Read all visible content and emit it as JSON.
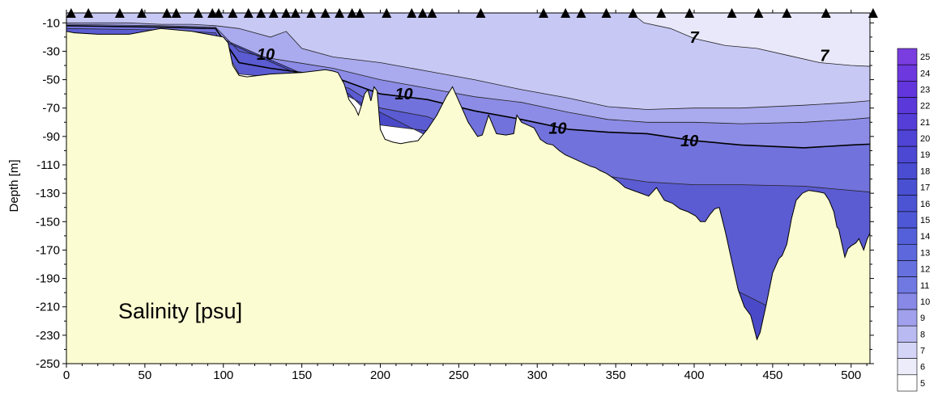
{
  "chart_data": {
    "type": "area",
    "title": "",
    "xlabel": "",
    "ylabel": "Depth [m]",
    "xlim": [
      0,
      512
    ],
    "ylim": [
      -250,
      -3
    ],
    "x_ticks": [
      0,
      50,
      100,
      150,
      200,
      250,
      300,
      350,
      400,
      450,
      500
    ],
    "y_ticks": [
      -10,
      -30,
      -50,
      -70,
      -90,
      -110,
      -130,
      -150,
      -170,
      -190,
      -210,
      -230,
      -250
    ],
    "annotation": "Salinity [psu]",
    "contour_labels": [
      {
        "text": "10",
        "x": 127,
        "y": -36
      },
      {
        "text": "10",
        "x": 215,
        "y": -64
      },
      {
        "text": "10",
        "x": 313,
        "y": -88
      },
      {
        "text": "10",
        "x": 397,
        "y": -97
      },
      {
        "text": "7",
        "x": 400,
        "y": -24
      },
      {
        "text": "7",
        "x": 483,
        "y": -37
      }
    ],
    "station_x": [
      3,
      14,
      34,
      48,
      64,
      70,
      84,
      93,
      97,
      106,
      116,
      124,
      132,
      140,
      146,
      156,
      165,
      174,
      182,
      187,
      204,
      220,
      227,
      233,
      264,
      304,
      318,
      328,
      344,
      361,
      379,
      397,
      424,
      441,
      459,
      484,
      514
    ],
    "bathymetry": [
      [
        0,
        -16
      ],
      [
        5,
        -17
      ],
      [
        20,
        -18
      ],
      [
        40,
        -18
      ],
      [
        60,
        -14
      ],
      [
        80,
        -16
      ],
      [
        100,
        -20
      ],
      [
        103,
        -24
      ],
      [
        106,
        -40
      ],
      [
        110,
        -47
      ],
      [
        115,
        -48
      ],
      [
        130,
        -46
      ],
      [
        150,
        -45
      ],
      [
        165,
        -43
      ],
      [
        170,
        -44
      ],
      [
        173,
        -45
      ],
      [
        177,
        -53
      ],
      [
        180,
        -64
      ],
      [
        184,
        -70
      ],
      [
        186,
        -75
      ],
      [
        188,
        -68
      ],
      [
        190,
        -60
      ],
      [
        192,
        -57
      ],
      [
        194,
        -65
      ],
      [
        196,
        -55
      ],
      [
        198,
        -58
      ],
      [
        200,
        -85
      ],
      [
        203,
        -92
      ],
      [
        208,
        -94
      ],
      [
        213,
        -95
      ],
      [
        218,
        -94
      ],
      [
        224,
        -93
      ],
      [
        230,
        -85
      ],
      [
        236,
        -75
      ],
      [
        242,
        -62
      ],
      [
        246,
        -55
      ],
      [
        250,
        -65
      ],
      [
        256,
        -80
      ],
      [
        262,
        -90
      ],
      [
        265,
        -89
      ],
      [
        269,
        -75
      ],
      [
        274,
        -88
      ],
      [
        280,
        -89
      ],
      [
        285,
        -88
      ],
      [
        287,
        -75
      ],
      [
        290,
        -80
      ],
      [
        294,
        -82
      ],
      [
        298,
        -84
      ],
      [
        302,
        -92
      ],
      [
        306,
        -95
      ],
      [
        310,
        -96
      ],
      [
        314,
        -100
      ],
      [
        318,
        -103
      ],
      [
        322,
        -105
      ],
      [
        326,
        -107
      ],
      [
        330,
        -109
      ],
      [
        334,
        -111
      ],
      [
        337,
        -112
      ],
      [
        340,
        -114
      ],
      [
        344,
        -116
      ],
      [
        348,
        -119
      ],
      [
        352,
        -122
      ],
      [
        356,
        -126
      ],
      [
        361,
        -128
      ],
      [
        366,
        -130
      ],
      [
        371,
        -132
      ],
      [
        376,
        -126
      ],
      [
        381,
        -135
      ],
      [
        386,
        -137
      ],
      [
        391,
        -141
      ],
      [
        396,
        -143
      ],
      [
        401,
        -146
      ],
      [
        404,
        -150
      ],
      [
        407,
        -150
      ],
      [
        410,
        -145
      ],
      [
        413,
        -141
      ],
      [
        416,
        -140
      ],
      [
        420,
        -158
      ],
      [
        424,
        -178
      ],
      [
        428,
        -198
      ],
      [
        432,
        -210
      ],
      [
        436,
        -216
      ],
      [
        440,
        -233
      ],
      [
        442,
        -228
      ],
      [
        446,
        -208
      ],
      [
        450,
        -186
      ],
      [
        454,
        -176
      ],
      [
        456,
        -174
      ],
      [
        459,
        -166
      ],
      [
        462,
        -148
      ],
      [
        465,
        -135
      ],
      [
        469,
        -130
      ],
      [
        473,
        -128
      ],
      [
        479,
        -129
      ],
      [
        483,
        -130
      ],
      [
        486,
        -135
      ],
      [
        489,
        -143
      ],
      [
        491,
        -154
      ],
      [
        492,
        -155
      ],
      [
        494,
        -165
      ],
      [
        496,
        -175
      ],
      [
        498,
        -169
      ],
      [
        500,
        -167
      ],
      [
        503,
        -165
      ],
      [
        505,
        -162
      ],
      [
        508,
        -170
      ],
      [
        510,
        -163
      ],
      [
        512,
        -158
      ],
      [
        514,
        -115
      ],
      [
        517,
        -108
      ],
      [
        520,
        -121
      ]
    ],
    "salinity_bands": [
      {
        "psu": 7,
        "color": "#e8e8fa",
        "upper": [
          [
            360,
            -3
          ],
          [
            420,
            -3
          ],
          [
            517,
            -3
          ],
          [
            520,
            -3
          ]
        ],
        "lower": [
          [
            360,
            -3
          ],
          [
            368,
            -10
          ],
          [
            385,
            -14
          ],
          [
            400,
            -21
          ],
          [
            420,
            -26
          ],
          [
            440,
            -28
          ],
          [
            460,
            -33
          ],
          [
            480,
            -38
          ],
          [
            500,
            -40
          ],
          [
            520,
            -41
          ]
        ]
      },
      {
        "psu": 8,
        "color": "#c8c8f5",
        "upper": [
          [
            0,
            -3
          ],
          [
            360,
            -3
          ],
          [
            368,
            -10
          ],
          [
            385,
            -14
          ],
          [
            400,
            -21
          ],
          [
            420,
            -26
          ],
          [
            440,
            -28
          ],
          [
            460,
            -33
          ],
          [
            480,
            -38
          ],
          [
            500,
            -40
          ],
          [
            520,
            -41
          ]
        ],
        "lower": [
          [
            0,
            -10
          ],
          [
            40,
            -10
          ],
          [
            60,
            -11
          ],
          [
            80,
            -11
          ],
          [
            95,
            -12
          ],
          [
            110,
            -14
          ],
          [
            130,
            -20
          ],
          [
            140,
            -16
          ],
          [
            150,
            -28
          ],
          [
            170,
            -34
          ],
          [
            200,
            -38
          ],
          [
            230,
            -44
          ],
          [
            260,
            -50
          ],
          [
            290,
            -57
          ],
          [
            320,
            -63
          ],
          [
            345,
            -69
          ],
          [
            370,
            -71
          ],
          [
            400,
            -70
          ],
          [
            430,
            -70
          ],
          [
            470,
            -68
          ],
          [
            500,
            -66
          ],
          [
            520,
            -64
          ]
        ]
      },
      {
        "psu": 9,
        "color": "#aaaaee",
        "upper": [
          [
            0,
            -10
          ],
          [
            40,
            -10
          ],
          [
            60,
            -11
          ],
          [
            80,
            -11
          ],
          [
            95,
            -12
          ],
          [
            110,
            -14
          ],
          [
            130,
            -20
          ],
          [
            140,
            -16
          ],
          [
            150,
            -28
          ],
          [
            170,
            -34
          ],
          [
            200,
            -38
          ],
          [
            230,
            -44
          ],
          [
            260,
            -50
          ],
          [
            290,
            -57
          ],
          [
            320,
            -63
          ],
          [
            345,
            -69
          ],
          [
            370,
            -71
          ],
          [
            400,
            -70
          ],
          [
            430,
            -70
          ],
          [
            470,
            -68
          ],
          [
            500,
            -66
          ],
          [
            520,
            -64
          ]
        ],
        "lower": [
          [
            0,
            -11
          ],
          [
            60,
            -12
          ],
          [
            95,
            -13
          ],
          [
            110,
            -30
          ],
          [
            130,
            -35
          ],
          [
            170,
            -42
          ],
          [
            200,
            -50
          ],
          [
            230,
            -56
          ],
          [
            260,
            -62
          ],
          [
            290,
            -66
          ],
          [
            320,
            -73
          ],
          [
            345,
            -78
          ],
          [
            370,
            -80
          ],
          [
            400,
            -80
          ],
          [
            430,
            -81
          ],
          [
            470,
            -80
          ],
          [
            500,
            -78
          ],
          [
            520,
            -76
          ]
        ]
      },
      {
        "psu": 10,
        "color": "#8c8ce6",
        "upper": [
          [
            0,
            -11
          ],
          [
            60,
            -12
          ],
          [
            95,
            -13
          ],
          [
            110,
            -30
          ],
          [
            130,
            -35
          ],
          [
            170,
            -42
          ],
          [
            200,
            -50
          ],
          [
            230,
            -56
          ],
          [
            260,
            -62
          ],
          [
            290,
            -66
          ],
          [
            320,
            -73
          ],
          [
            345,
            -78
          ],
          [
            370,
            -80
          ],
          [
            400,
            -80
          ],
          [
            430,
            -81
          ],
          [
            470,
            -80
          ],
          [
            500,
            -78
          ],
          [
            520,
            -76
          ]
        ],
        "lower": [
          [
            0,
            -12
          ],
          [
            60,
            -13
          ],
          [
            95,
            -14
          ],
          [
            110,
            -38
          ],
          [
            130,
            -42
          ],
          [
            170,
            -48
          ],
          [
            200,
            -60
          ],
          [
            230,
            -64
          ],
          [
            260,
            -72
          ],
          [
            290,
            -78
          ],
          [
            320,
            -85
          ],
          [
            345,
            -87
          ],
          [
            370,
            -88
          ],
          [
            400,
            -93
          ],
          [
            430,
            -96
          ],
          [
            470,
            -98
          ],
          [
            500,
            -96
          ],
          [
            520,
            -95
          ]
        ]
      },
      {
        "psu": 11,
        "color": "#7272dc",
        "upper": [
          [
            0,
            -12
          ],
          [
            60,
            -13
          ],
          [
            95,
            -14
          ],
          [
            110,
            -38
          ],
          [
            130,
            -42
          ],
          [
            170,
            -48
          ],
          [
            200,
            -60
          ],
          [
            230,
            -64
          ],
          [
            260,
            -72
          ],
          [
            290,
            -78
          ],
          [
            320,
            -85
          ],
          [
            345,
            -87
          ],
          [
            370,
            -88
          ],
          [
            400,
            -93
          ],
          [
            430,
            -96
          ],
          [
            470,
            -98
          ],
          [
            500,
            -96
          ],
          [
            520,
            -95
          ]
        ],
        "lower": [
          [
            0,
            -14
          ],
          [
            60,
            -15
          ],
          [
            95,
            -17
          ],
          [
            110,
            -46
          ],
          [
            150,
            -50
          ],
          [
            180,
            -56
          ],
          [
            200,
            -70
          ],
          [
            230,
            -76
          ],
          [
            260,
            -90
          ],
          [
            290,
            -100
          ],
          [
            320,
            -110
          ],
          [
            345,
            -118
          ],
          [
            370,
            -122
          ],
          [
            400,
            -124
          ],
          [
            430,
            -124
          ],
          [
            470,
            -125
          ],
          [
            500,
            -128
          ],
          [
            520,
            -130
          ]
        ]
      },
      {
        "psu": 12,
        "color": "#5b5bd2",
        "upper": [
          [
            0,
            -14
          ],
          [
            60,
            -15
          ],
          [
            95,
            -17
          ],
          [
            110,
            -46
          ],
          [
            150,
            -50
          ],
          [
            180,
            -56
          ],
          [
            200,
            -70
          ],
          [
            230,
            -76
          ],
          [
            260,
            -90
          ],
          [
            290,
            -100
          ],
          [
            320,
            -110
          ],
          [
            345,
            -118
          ],
          [
            370,
            -122
          ],
          [
            400,
            -124
          ],
          [
            430,
            -124
          ],
          [
            470,
            -125
          ],
          [
            500,
            -128
          ],
          [
            520,
            -130
          ]
        ],
        "lower": [
          [
            0,
            -20
          ],
          [
            60,
            -18
          ],
          [
            95,
            -19
          ],
          [
            105,
            -24
          ],
          [
            180,
            -60
          ],
          [
            200,
            -82
          ],
          [
            230,
            -86
          ],
          [
            400,
            -190
          ],
          [
            430,
            -205
          ],
          [
            440,
            -232
          ],
          [
            520,
            -240
          ]
        ]
      },
      {
        "psu": 13,
        "color": "#4a4ac8",
        "upper": [
          [
            0,
            -20
          ],
          [
            60,
            -18
          ],
          [
            95,
            -19
          ],
          [
            105,
            -24
          ],
          [
            180,
            -60
          ],
          [
            200,
            -82
          ],
          [
            230,
            -86
          ],
          [
            400,
            -190
          ],
          [
            430,
            -205
          ],
          [
            440,
            -232
          ],
          [
            520,
            -240
          ]
        ],
        "lower": [
          [
            0,
            -22
          ],
          [
            60,
            -20
          ],
          [
            105,
            -25
          ],
          [
            180,
            -62
          ],
          [
            520,
            -250
          ]
        ]
      }
    ],
    "legend": {
      "labels": [
        "25",
        "24",
        "23",
        "22",
        "21",
        "20",
        "19",
        "18",
        "17",
        "16",
        "15",
        "14",
        "13",
        "12",
        "11",
        "10",
        "9",
        "8",
        "7",
        "6",
        "5"
      ],
      "colors": [
        "#7a3de0",
        "#6d38de",
        "#6236dc",
        "#5a38da",
        "#553ed8",
        "#5044d6",
        "#4c48d4",
        "#4a4cd2",
        "#4a50d2",
        "#4c54d4",
        "#4e58d6",
        "#5460da",
        "#5c68dc",
        "#6670de",
        "#7078e2",
        "#8888e6",
        "#a0a0ec",
        "#babaf2",
        "#d4d4f7",
        "#ececfb",
        "#ffffff"
      ]
    }
  }
}
